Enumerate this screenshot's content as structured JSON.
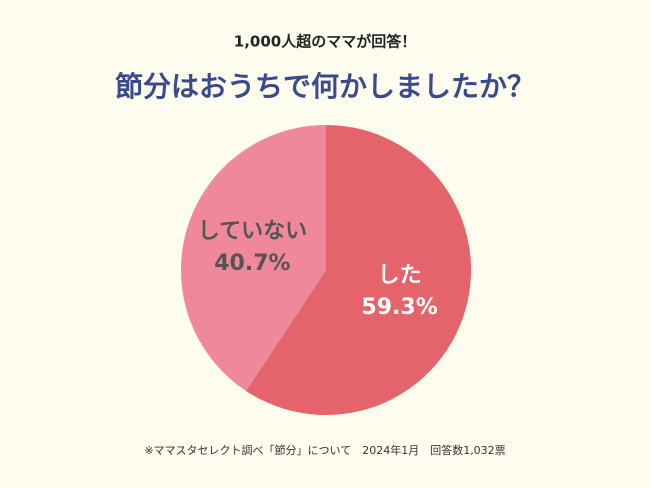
{
  "chart_data": {
    "type": "pie",
    "subtitle": "1,000人超のママが回答！",
    "title": "節分はおうちで何かしましたか？",
    "categories": [
      "した",
      "していない"
    ],
    "values": [
      59.3,
      40.7
    ],
    "value_labels": [
      "59.3%",
      "40.7%"
    ],
    "colors": [
      "#e5636a",
      "#f0889b"
    ],
    "label_colors": [
      "#ffffff",
      "#555555"
    ],
    "note": "※ママスタセレクト調べ「節分」について　2024年1月　回答数1,032票"
  }
}
